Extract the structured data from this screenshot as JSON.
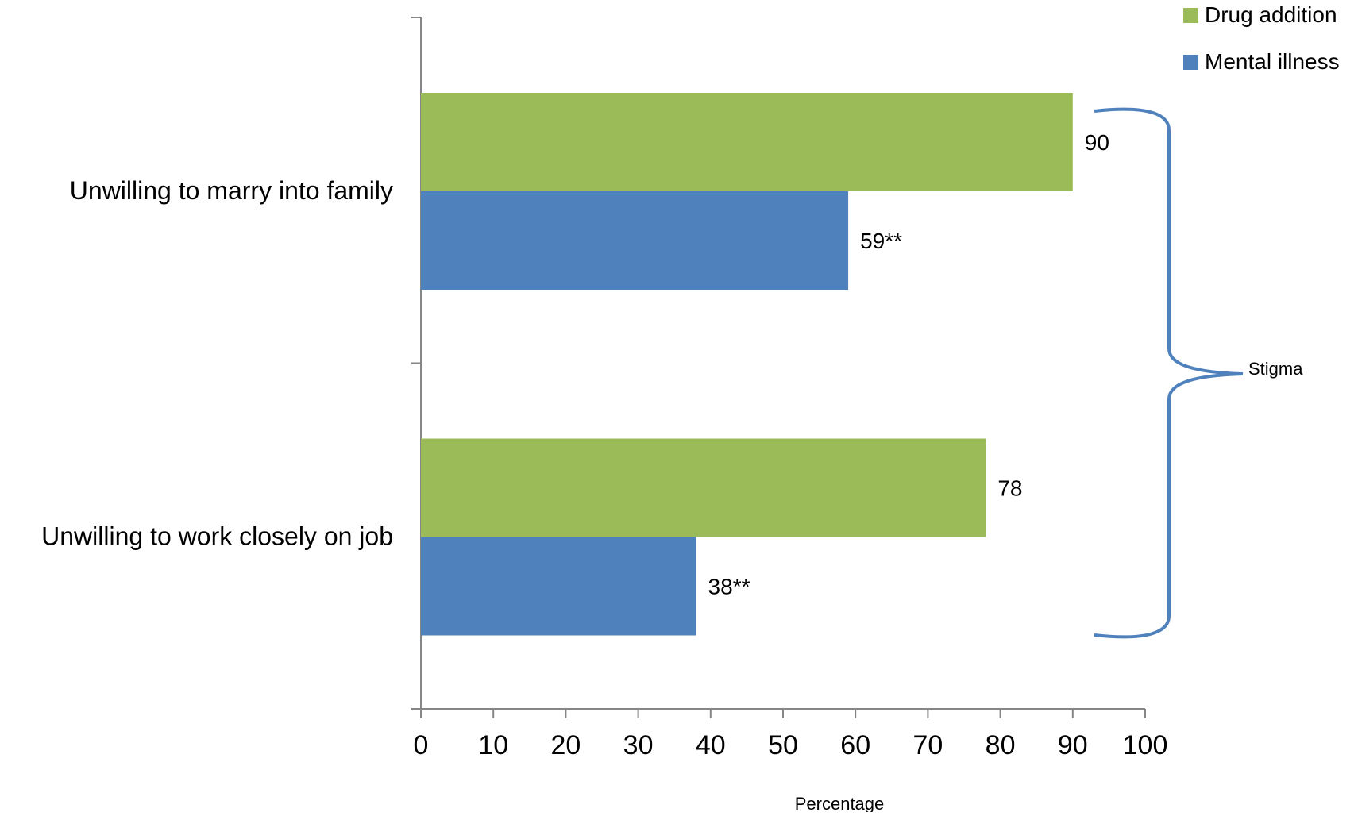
{
  "chart_data": {
    "type": "bar",
    "orientation": "horizontal",
    "title": "",
    "xlabel": "Percentage",
    "ylabel": "",
    "xlim": [
      0,
      100
    ],
    "x_ticks": [
      "0",
      "10",
      "20",
      "30",
      "40",
      "50",
      "60",
      "70",
      "80",
      "90",
      "100"
    ],
    "categories": [
      "Unwilling to marry into family",
      "Unwilling to work closely on job"
    ],
    "series": [
      {
        "name": "Drug addition",
        "color": "#9BBB59",
        "values": [
          90,
          78
        ],
        "data_labels": [
          "90",
          "78"
        ]
      },
      {
        "name": "Mental illness",
        "color": "#4F81BD",
        "values": [
          59,
          38
        ],
        "data_labels": [
          "59**",
          "38**"
        ]
      }
    ],
    "legend_position": "top-right",
    "grid": false,
    "annotation": {
      "type": "brace",
      "label": "Stigma",
      "color": "#4F81BD"
    }
  }
}
